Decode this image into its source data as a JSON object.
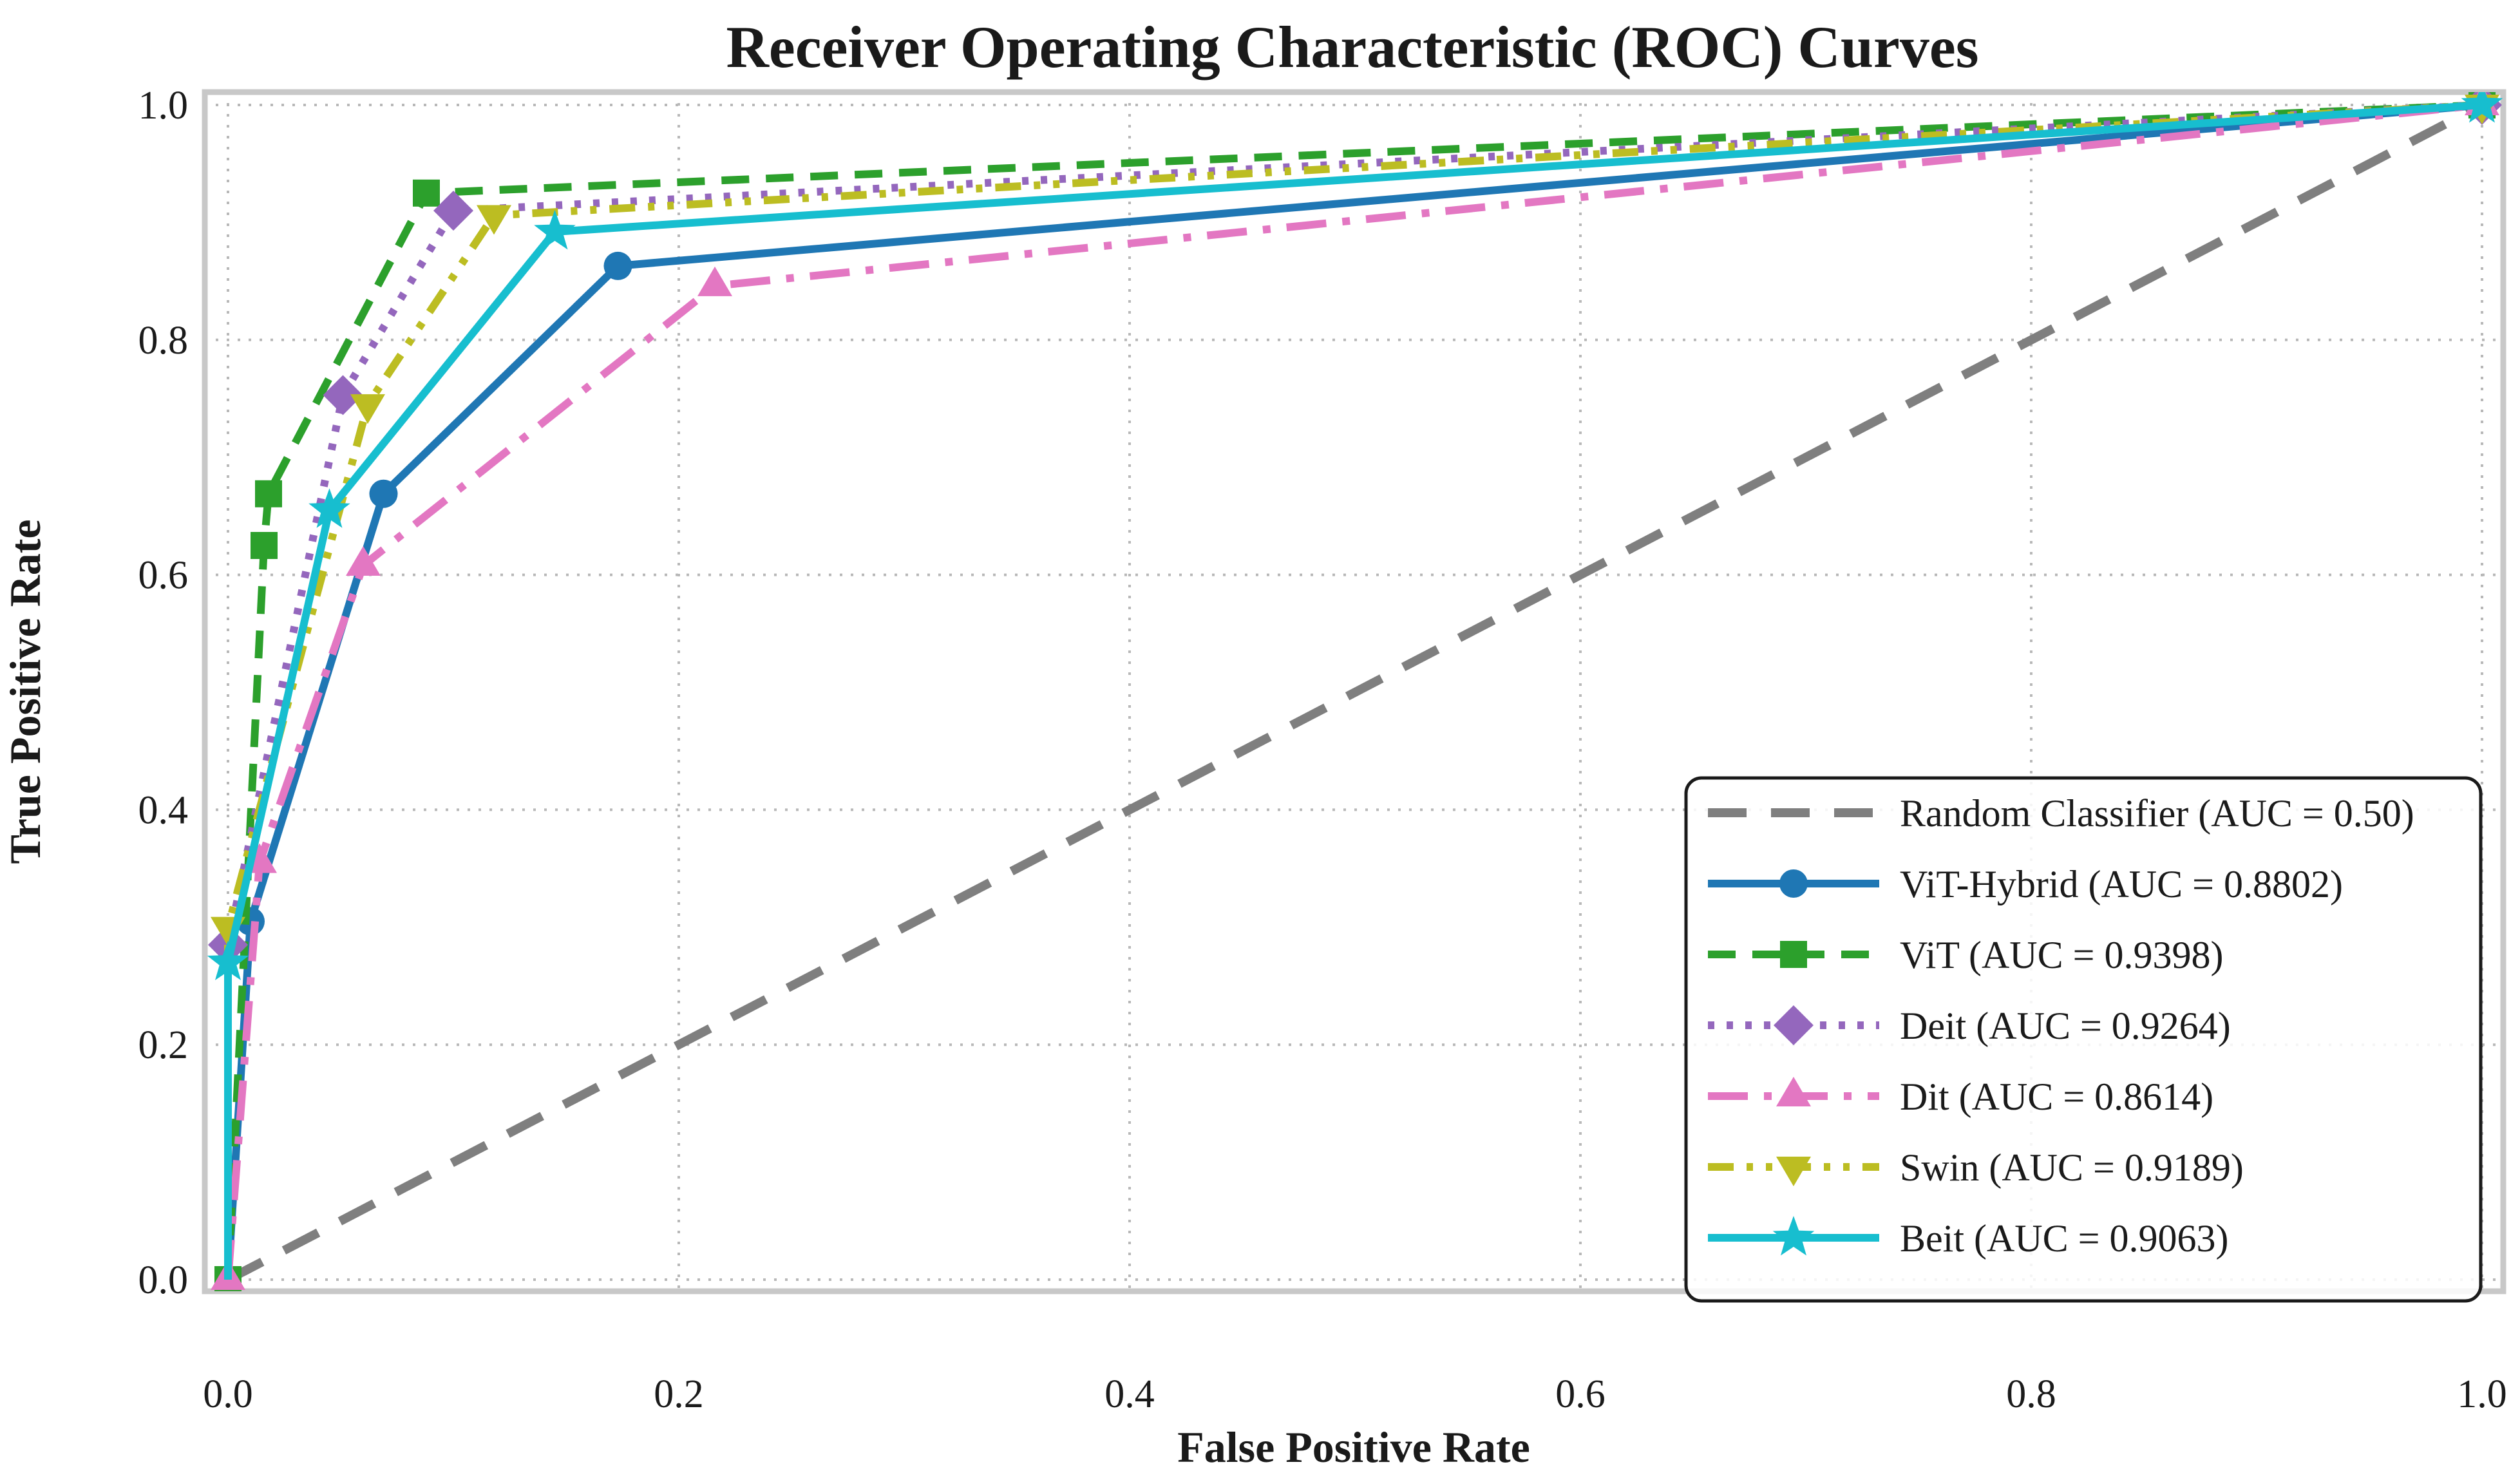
{
  "chart_data": {
    "type": "line",
    "title": "Receiver Operating Characteristic (ROC) Curves",
    "xlabel": "False Positive Rate",
    "ylabel": "True Positive Rate",
    "xlim": [
      -0.01,
      1.01
    ],
    "ylim": [
      -0.01,
      1.01
    ],
    "x_tick_labels": [
      "0.0",
      "0.2",
      "0.4",
      "0.6",
      "0.8",
      "1.0"
    ],
    "y_tick_labels": [
      "0.0",
      "0.2",
      "0.4",
      "0.6",
      "0.8",
      "1.0"
    ],
    "x_tick_values": [
      0.0,
      0.2,
      0.4,
      0.6,
      0.8,
      1.0
    ],
    "y_tick_values": [
      0.0,
      0.2,
      0.4,
      0.6,
      0.8,
      1.0
    ],
    "grid": "dotted",
    "grid_color": "#b8b8b8",
    "spine_color": "#c8c8c8",
    "legend_position": "lower right",
    "series": [
      {
        "name": "Random Classifier",
        "label": "Random Classifier (AUC = 0.50)",
        "auc": 0.5,
        "color": "#7f7f7f",
        "linestyle": "dashed",
        "linewidth": 14,
        "marker": "none",
        "origin_marker": false,
        "points": [
          [
            0,
            0
          ],
          [
            1,
            1
          ]
        ]
      },
      {
        "name": "ViT-Hybrid",
        "label": "ViT-Hybrid (AUC = 0.8802)",
        "auc": 0.8802,
        "color": "#1f77b4",
        "linestyle": "solid",
        "linewidth": 12,
        "marker": "circle",
        "origin_marker": false,
        "points": [
          [
            0,
            0
          ],
          [
            0.01,
            0.305
          ],
          [
            0.069,
            0.669
          ],
          [
            0.173,
            0.863
          ],
          [
            1,
            1
          ]
        ]
      },
      {
        "name": "ViT",
        "label": "ViT (AUC = 0.9398)",
        "auc": 0.9398,
        "color": "#2ca02c",
        "linestyle": "dashed2",
        "linewidth": 12,
        "marker": "square",
        "origin_marker": true,
        "points": [
          [
            0,
            0
          ],
          [
            0.016,
            0.625
          ],
          [
            0.018,
            0.669
          ],
          [
            0.088,
            0.925
          ],
          [
            1,
            1
          ]
        ]
      },
      {
        "name": "Deit",
        "label": "Deit (AUC = 0.9264)",
        "auc": 0.9264,
        "color": "#9467bd",
        "linestyle": "dotted",
        "linewidth": 12,
        "marker": "diamond",
        "origin_marker": false,
        "points": [
          [
            0,
            0
          ],
          [
            0.0,
            0.285
          ],
          [
            0.051,
            0.753
          ],
          [
            0.1,
            0.91
          ],
          [
            1,
            1
          ]
        ]
      },
      {
        "name": "Dit",
        "label": "Dit (AUC = 0.8614)",
        "auc": 0.8614,
        "color": "#e377c2",
        "linestyle": "dashdot",
        "linewidth": 12,
        "marker": "triangle-up",
        "origin_marker": true,
        "points": [
          [
            0,
            0
          ],
          [
            0.014,
            0.355
          ],
          [
            0.06,
            0.608
          ],
          [
            0.216,
            0.846
          ],
          [
            1,
            1
          ]
        ]
      },
      {
        "name": "Swin",
        "label": "Swin (AUC = 0.9189)",
        "auc": 0.9189,
        "color": "#bcbd22",
        "linestyle": "dashdotdot",
        "linewidth": 12,
        "marker": "triangle-down",
        "origin_marker": false,
        "points": [
          [
            0,
            0
          ],
          [
            0.0,
            0.3
          ],
          [
            0.062,
            0.745
          ],
          [
            0.118,
            0.906
          ],
          [
            1,
            1
          ]
        ]
      },
      {
        "name": "Beit",
        "label": "Beit (AUC = 0.9063)",
        "auc": 0.9063,
        "color": "#17becf",
        "linestyle": "solid",
        "linewidth": 12,
        "marker": "star",
        "origin_marker": false,
        "points": [
          [
            0,
            0
          ],
          [
            0.0,
            0.27
          ],
          [
            0.045,
            0.655
          ],
          [
            0.145,
            0.892
          ],
          [
            1,
            1
          ]
        ]
      }
    ]
  }
}
